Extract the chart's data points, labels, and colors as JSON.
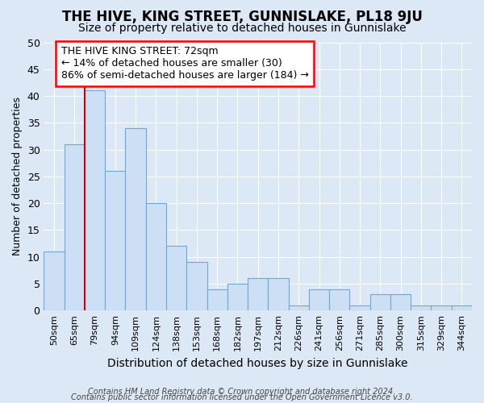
{
  "title1": "THE HIVE, KING STREET, GUNNISLAKE, PL18 9JU",
  "title2": "Size of property relative to detached houses in Gunnislake",
  "xlabel": "Distribution of detached houses by size in Gunnislake",
  "ylabel": "Number of detached properties",
  "categories": [
    "50sqm",
    "65sqm",
    "79sqm",
    "94sqm",
    "109sqm",
    "124sqm",
    "138sqm",
    "153sqm",
    "168sqm",
    "182sqm",
    "197sqm",
    "212sqm",
    "226sqm",
    "241sqm",
    "256sqm",
    "271sqm",
    "285sqm",
    "300sqm",
    "315sqm",
    "329sqm",
    "344sqm"
  ],
  "values": [
    11,
    31,
    41,
    26,
    34,
    20,
    12,
    9,
    4,
    5,
    6,
    6,
    1,
    4,
    4,
    1,
    3,
    3,
    1,
    1,
    1
  ],
  "bar_color": "#ccdff5",
  "bar_edge_color": "#6aaad4",
  "annotation_line1": "THE HIVE KING STREET: 72sqm",
  "annotation_line2": "← 14% of detached houses are smaller (30)",
  "annotation_line3": "86% of semi-detached houses are larger (184) →",
  "ylim": [
    0,
    50
  ],
  "yticks": [
    0,
    5,
    10,
    15,
    20,
    25,
    30,
    35,
    40,
    45,
    50
  ],
  "bg_color": "#dce8f5",
  "plot_bg_color": "#dce8f5",
  "grid_color": "#ffffff",
  "footer_line1": "Contains HM Land Registry data © Crown copyright and database right 2024.",
  "footer_line2": "Contains public sector information licensed under the Open Government Licence v3.0.",
  "red_line_color": "#cc0000",
  "title1_fontsize": 12,
  "title2_fontsize": 10,
  "annotation_fontsize": 9,
  "xlabel_fontsize": 10,
  "ylabel_fontsize": 9,
  "xtick_fontsize": 8,
  "ytick_fontsize": 9,
  "footer_fontsize": 7
}
